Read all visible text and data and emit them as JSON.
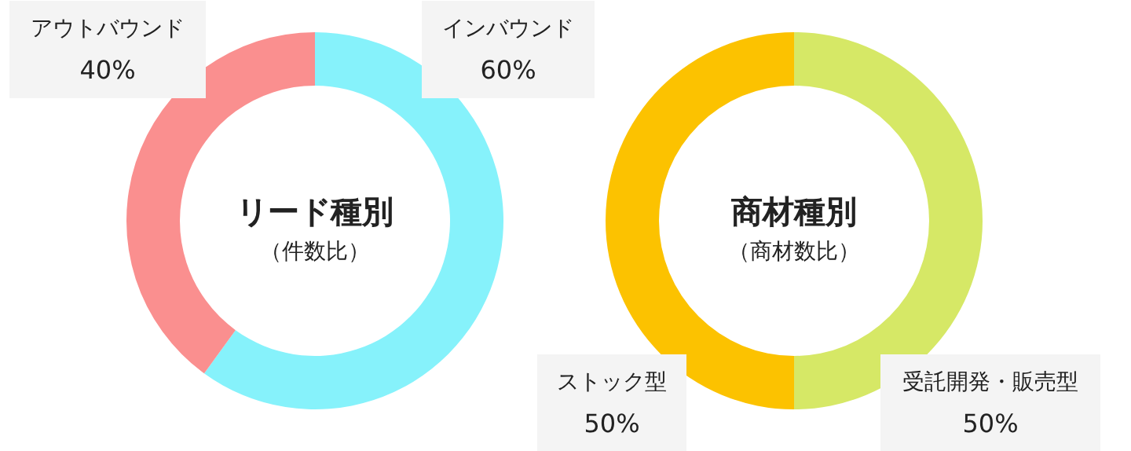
{
  "chart_data": [
    {
      "type": "donut",
      "title": "リード種別",
      "subtitle": "（件数比）",
      "categories": [
        "インバウンド",
        "アウトバウンド"
      ],
      "values": [
        60,
        40
      ],
      "colors": [
        "#86f2fb",
        "#fa8f8f"
      ],
      "value_labels": [
        "60%",
        "40%"
      ]
    },
    {
      "type": "donut",
      "title": "商材種別",
      "subtitle": "（商材数比）",
      "categories": [
        "受託開発・販売型",
        "ストック型"
      ],
      "values": [
        50,
        50
      ],
      "colors": [
        "#d6e866",
        "#fcc200"
      ],
      "value_labels": [
        "50%",
        "50%"
      ]
    }
  ]
}
